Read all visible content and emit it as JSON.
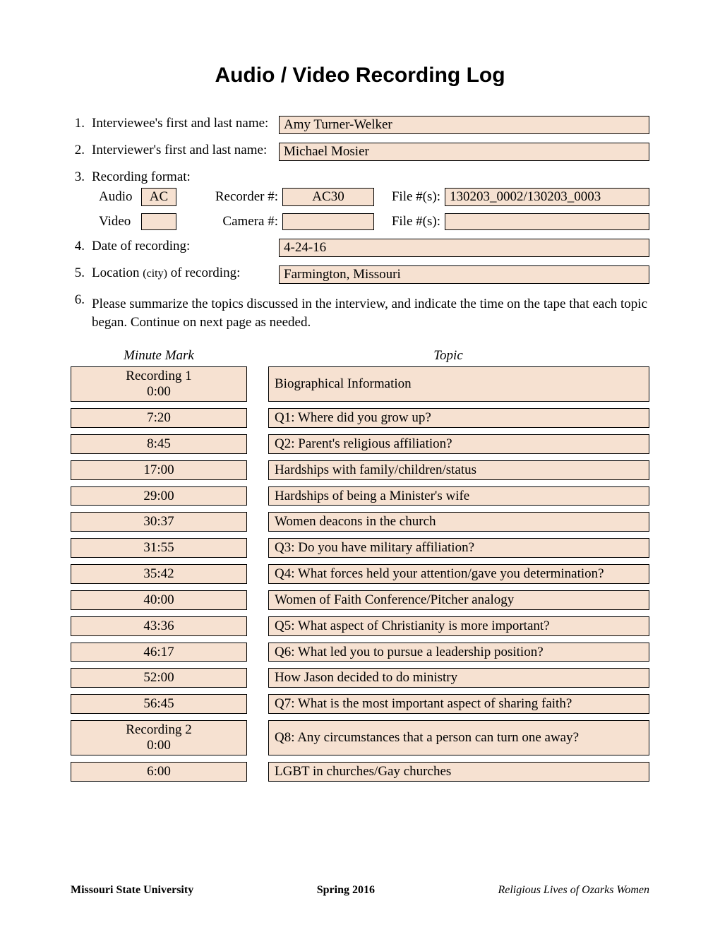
{
  "title": "Audio / Video Recording Log",
  "fields": {
    "f1": {
      "num": "1.",
      "label": "Interviewee's first and last name:",
      "value": "Amy Turner-Welker"
    },
    "f2": {
      "num": "2.",
      "label": "Interviewer's first and last name:",
      "value": "Michael Mosier"
    },
    "f3": {
      "num": "3.",
      "label": "Recording format:"
    },
    "audio": {
      "label": "Audio",
      "code": "AC",
      "recorder_label": "Recorder #:",
      "recorder": "AC30",
      "file_label": "File #(s):",
      "file": "130203_0002/130203_0003"
    },
    "video": {
      "label": "Video",
      "code": "",
      "camera_label": "Camera #:",
      "camera": "",
      "file_label": "File #(s):",
      "file": ""
    },
    "f4": {
      "num": "4.",
      "label": "Date of recording:",
      "value": "4-24-16"
    },
    "f5": {
      "num": "5.",
      "label_a": "Location ",
      "label_b": "(city)",
      "label_c": " of recording:",
      "value": "Farmington, Missouri"
    },
    "f6": {
      "num": "6.",
      "text": "Please summarize the topics discussed in the interview, and indicate the time on the tape that each topic began. Continue on next page as needed."
    }
  },
  "table": {
    "header_minute": "Minute Mark",
    "header_topic": "Topic",
    "rows": [
      {
        "minute": "Recording 1\n0:00",
        "topic": "Biographical Information"
      },
      {
        "minute": "7:20",
        "topic": "Q1: Where did you grow up?"
      },
      {
        "minute": "8:45",
        "topic": "Q2: Parent's religious affiliation?"
      },
      {
        "minute": "17:00",
        "topic": "Hardships with family/children/status"
      },
      {
        "minute": "29:00",
        "topic": "Hardships of being a Minister's wife"
      },
      {
        "minute": "30:37",
        "topic": "Women deacons in the church"
      },
      {
        "minute": "31:55",
        "topic": "Q3: Do you have military affiliation?"
      },
      {
        "minute": "35:42",
        "topic": "Q4: What forces held your attention/gave you determination?"
      },
      {
        "minute": "40:00",
        "topic": "Women of Faith Conference/Pitcher analogy"
      },
      {
        "minute": "43:36",
        "topic": "Q5: What aspect of Christianity is more important?"
      },
      {
        "minute": "46:17",
        "topic": "Q6: What led you to pursue a leadership position?"
      },
      {
        "minute": "52:00",
        "topic": "How Jason decided to do ministry"
      },
      {
        "minute": "56:45",
        "topic": "Q7: What is the most important aspect of sharing faith?"
      },
      {
        "minute": "Recording 2\n0:00",
        "topic": "Q8: Any circumstances that a person can turn one away?"
      },
      {
        "minute": "6:00",
        "topic": "LGBT in churches/Gay churches"
      }
    ]
  },
  "footer": {
    "left": "Missouri State University",
    "center": "Spring 2016",
    "right": "Religious Lives of Ozarks Women"
  },
  "colors": {
    "box_bg": "#f6e1d1",
    "text": "#000000",
    "page_bg": "#ffffff"
  }
}
